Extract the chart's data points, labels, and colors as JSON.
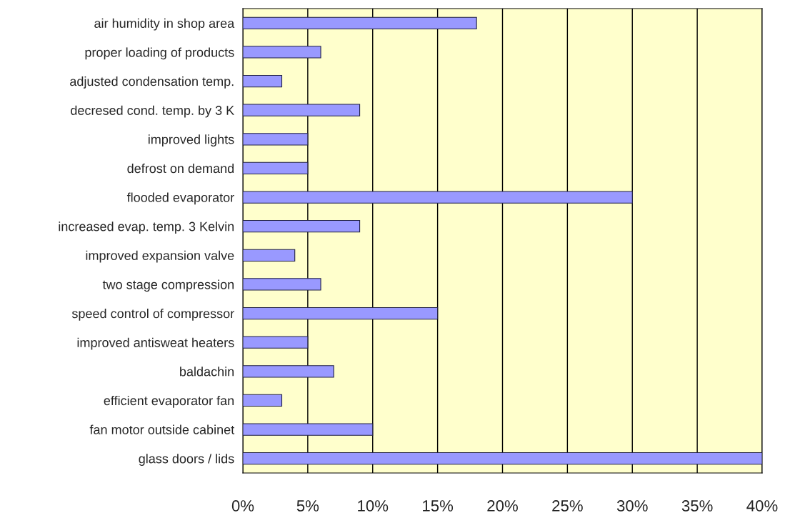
{
  "chart_data": {
    "type": "bar",
    "orientation": "horizontal",
    "categories": [
      "air humidity in shop area",
      "proper loading of products",
      "adjusted condensation temp.",
      "decresed cond. temp. by 3 K",
      "improved lights",
      "defrost on demand",
      "flooded evaporator",
      "increased evap. temp. 3 Kelvin",
      "improved expansion valve",
      "two stage compression",
      "speed control of compressor",
      "improved antisweat heaters",
      "baldachin",
      "efficient evaporator fan",
      "fan motor outside cabinet",
      "glass doors / lids"
    ],
    "values": [
      18,
      6,
      3,
      9,
      5,
      5,
      30,
      9,
      4,
      6,
      15,
      5,
      7,
      3,
      10,
      40
    ],
    "color": "#9999ff",
    "xlim": [
      0,
      40
    ],
    "xticks": [
      {
        "value": 0,
        "label": "0%"
      },
      {
        "value": 5,
        "label": "5%"
      },
      {
        "value": 10,
        "label": "10%"
      },
      {
        "value": 15,
        "label": "15%"
      },
      {
        "value": 20,
        "label": "20%"
      },
      {
        "value": 25,
        "label": "25%"
      },
      {
        "value": 30,
        "label": "30%"
      },
      {
        "value": 35,
        "label": "35%"
      },
      {
        "value": 40,
        "label": "40%"
      }
    ],
    "grid": "x"
  }
}
